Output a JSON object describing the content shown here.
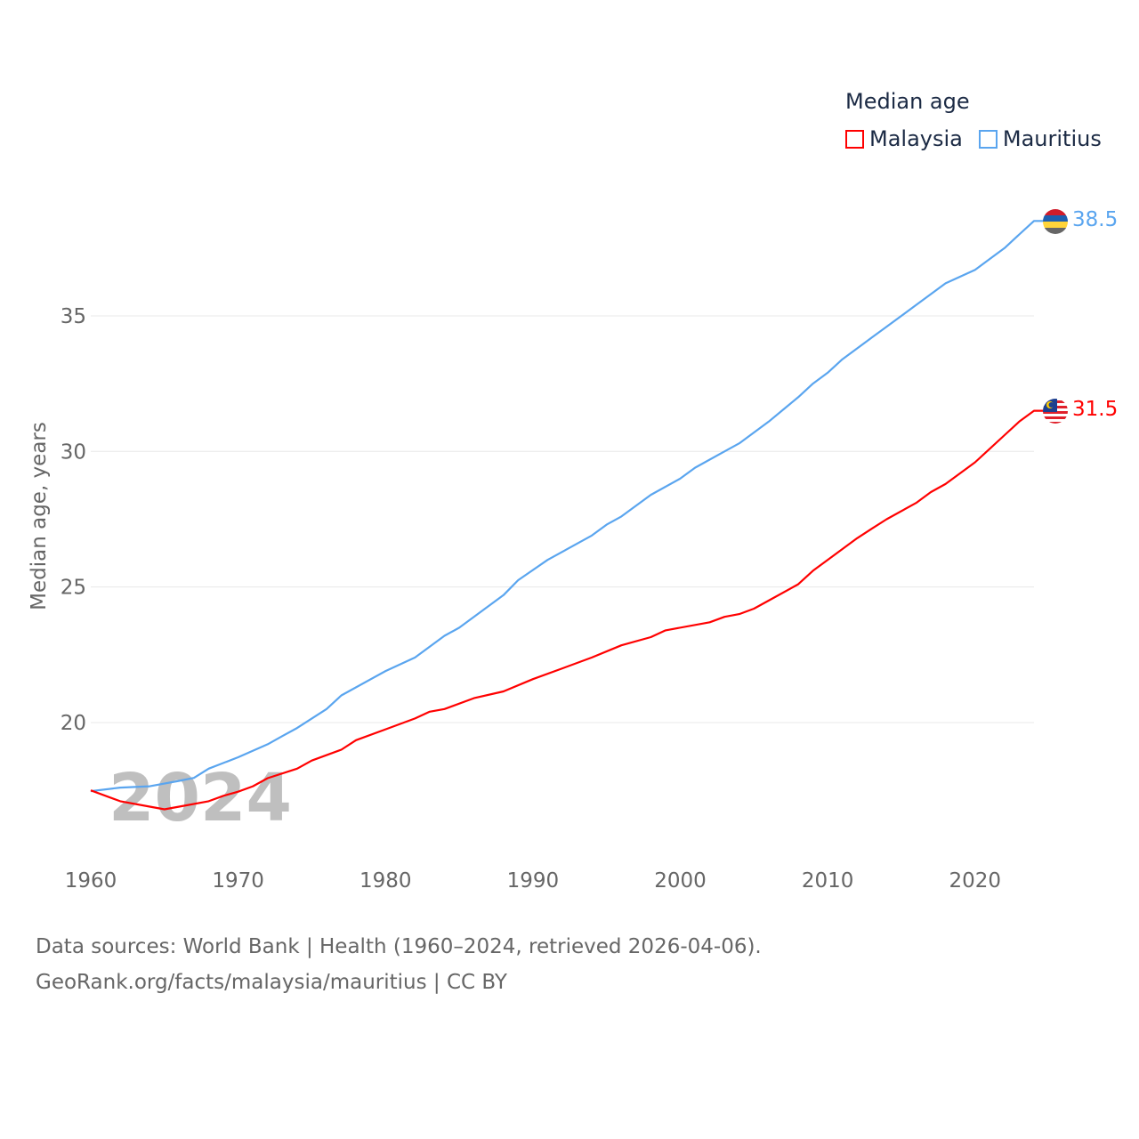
{
  "chart_data": {
    "type": "line",
    "title": "Median age",
    "xlabel": "",
    "ylabel": "Median age, years",
    "xlim": [
      1960,
      2024
    ],
    "ylim": [
      15.2,
      39.5
    ],
    "x_ticks": [
      "1960",
      "1970",
      "1980",
      "1990",
      "2000",
      "2010",
      "2020"
    ],
    "y_ticks": [
      "20",
      "25",
      "30",
      "35"
    ],
    "grid": true,
    "legend_position": "top-right",
    "watermark_year": "2024",
    "series": [
      {
        "name": "Malaysia",
        "color": "#ff0000",
        "end_label": "31.5",
        "points": [
          [
            1960,
            17.5
          ],
          [
            1962,
            17.1
          ],
          [
            1964,
            16.9
          ],
          [
            1965,
            16.8
          ],
          [
            1966,
            16.9
          ],
          [
            1968,
            17.1
          ],
          [
            1969,
            17.3
          ],
          [
            1970,
            17.45
          ],
          [
            1971,
            17.65
          ],
          [
            1972,
            17.95
          ],
          [
            1974,
            18.3
          ],
          [
            1975,
            18.6
          ],
          [
            1977,
            19.0
          ],
          [
            1978,
            19.35
          ],
          [
            1980,
            19.75
          ],
          [
            1982,
            20.15
          ],
          [
            1983,
            20.4
          ],
          [
            1984,
            20.5
          ],
          [
            1986,
            20.9
          ],
          [
            1988,
            21.15
          ],
          [
            1990,
            21.6
          ],
          [
            1992,
            22.0
          ],
          [
            1994,
            22.4
          ],
          [
            1996,
            22.85
          ],
          [
            1998,
            23.15
          ],
          [
            1999,
            23.4
          ],
          [
            2002,
            23.7
          ],
          [
            2003,
            23.9
          ],
          [
            2004,
            24.0
          ],
          [
            2005,
            24.2
          ],
          [
            2006,
            24.5
          ],
          [
            2008,
            25.1
          ],
          [
            2009,
            25.6
          ],
          [
            2010,
            26.0
          ],
          [
            2012,
            26.8
          ],
          [
            2013,
            27.15
          ],
          [
            2014,
            27.5
          ],
          [
            2016,
            28.1
          ],
          [
            2017,
            28.5
          ],
          [
            2018,
            28.8
          ],
          [
            2020,
            29.6
          ],
          [
            2022,
            30.6
          ],
          [
            2023,
            31.1
          ],
          [
            2024,
            31.5
          ]
        ]
      },
      {
        "name": "Mauritius",
        "color": "#5aa5ef",
        "end_label": "38.5",
        "points": [
          [
            1960,
            17.47
          ],
          [
            1962,
            17.6
          ],
          [
            1964,
            17.65
          ],
          [
            1966,
            17.85
          ],
          [
            1967,
            17.96
          ],
          [
            1968,
            18.3
          ],
          [
            1970,
            18.72
          ],
          [
            1972,
            19.2
          ],
          [
            1973,
            19.5
          ],
          [
            1974,
            19.8
          ],
          [
            1976,
            20.5
          ],
          [
            1977,
            21.0
          ],
          [
            1980,
            21.9
          ],
          [
            1982,
            22.4
          ],
          [
            1984,
            23.2
          ],
          [
            1985,
            23.5
          ],
          [
            1988,
            24.7
          ],
          [
            1989,
            25.25
          ],
          [
            1991,
            26.0
          ],
          [
            1994,
            26.9
          ],
          [
            1995,
            27.3
          ],
          [
            1996,
            27.6
          ],
          [
            1998,
            28.4
          ],
          [
            2000,
            29.0
          ],
          [
            2001,
            29.4
          ],
          [
            2003,
            30.0
          ],
          [
            2004,
            30.3
          ],
          [
            2006,
            31.1
          ],
          [
            2007,
            31.55
          ],
          [
            2008,
            32.0
          ],
          [
            2009,
            32.5
          ],
          [
            2010,
            32.9
          ],
          [
            2011,
            33.4
          ],
          [
            2013,
            34.2
          ],
          [
            2014,
            34.6
          ],
          [
            2016,
            35.4
          ],
          [
            2018,
            36.2
          ],
          [
            2020,
            36.7
          ],
          [
            2021,
            37.1
          ],
          [
            2022,
            37.5
          ],
          [
            2023,
            38.0
          ],
          [
            2024,
            38.5
          ]
        ]
      }
    ]
  },
  "footer": {
    "line1": "Data sources: World Bank | Health (1960–2024, retrieved 2026-04-06).",
    "line2": "GeoRank.org/facts/malaysia/mauritius | CC BY"
  }
}
